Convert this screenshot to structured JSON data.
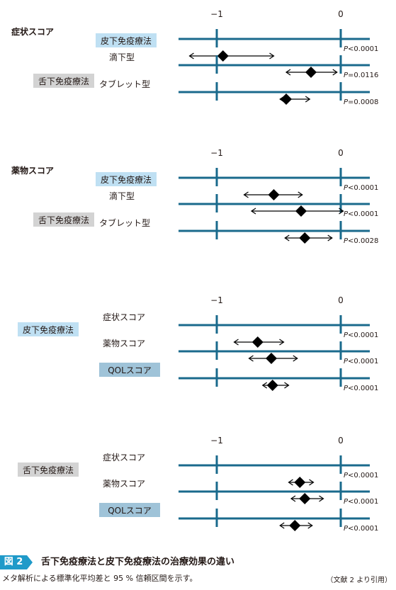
{
  "figure": {
    "badge": "図 2",
    "title": "舌下免疫療法と皮下免疫療法の治療効果の違い",
    "caption": "メタ解析による標準化平均差と 95 % 信頼区間を示す。",
    "source": "（文献 2 より引用）"
  },
  "colors": {
    "axis": "#1a6a8c",
    "subcutaneous_box": "#bfe0f3",
    "sublingual_box": "#d3d3d3",
    "qol_box": "#9fc3d8",
    "marker": "#000000"
  },
  "chart_data": [
    {
      "type": "forest",
      "title": "症状スコア",
      "ticks": [
        "−1",
        "0"
      ],
      "xlim": [
        -1.05,
        0.22
      ],
      "group_labels": [
        {
          "text": "皮下免疫療法",
          "style": "subcutaneous"
        },
        {
          "text": "舌下免疫療法",
          "style": "sublingual"
        }
      ],
      "rows": [
        {
          "label": "",
          "estimate": -0.95,
          "ci": [
            -1.22,
            -0.54
          ],
          "p": "P<0.0001"
        },
        {
          "label": "滴下型",
          "estimate": -0.24,
          "ci": [
            -0.44,
            -0.03
          ],
          "p": "P=0.0116"
        },
        {
          "label": "タブレット型",
          "estimate": -0.44,
          "ci": [
            -0.49,
            -0.25
          ],
          "p": "P=0.0008"
        }
      ]
    },
    {
      "type": "forest",
      "title": "薬物スコア",
      "ticks": [
        "−1",
        "0"
      ],
      "xlim": [
        -1.05,
        0.22
      ],
      "group_labels": [
        {
          "text": "皮下免疫療法",
          "style": "subcutaneous"
        },
        {
          "text": "舌下免疫療法",
          "style": "sublingual"
        }
      ],
      "rows": [
        {
          "label": "",
          "estimate": -0.54,
          "ci": [
            -0.78,
            -0.31
          ],
          "p": "P<0.0001"
        },
        {
          "label": "滴下型",
          "estimate": -0.32,
          "ci": [
            -0.72,
            0.02
          ],
          "p": "P<0.0001"
        },
        {
          "label": "タブレット型",
          "estimate": -0.29,
          "ci": [
            -0.45,
            -0.07
          ],
          "p": "P<0.0028"
        }
      ]
    },
    {
      "type": "forest",
      "title": "",
      "ticks": [
        "−1",
        "0"
      ],
      "xlim": [
        -1.05,
        0.22
      ],
      "group_labels": [
        {
          "text": "皮下免疫療法",
          "style": "subcutaneous"
        }
      ],
      "rows": [
        {
          "label": "症状スコア",
          "label_style": "plain",
          "estimate": -0.67,
          "ci": [
            -0.86,
            -0.46
          ],
          "p": "P<0.0001"
        },
        {
          "label": "薬物スコア",
          "label_style": "plain",
          "estimate": -0.56,
          "ci": [
            -0.74,
            -0.35
          ],
          "p": "P<0.0001"
        },
        {
          "label": "QOLスコア",
          "label_style": "qol",
          "estimate": -0.55,
          "ci": [
            -0.63,
            -0.42
          ],
          "p": "P<0.0001"
        }
      ]
    },
    {
      "type": "forest",
      "title": "",
      "ticks": [
        "−1",
        "0"
      ],
      "xlim": [
        -1.05,
        0.22
      ],
      "group_labels": [
        {
          "text": "舌下免疫療法",
          "style": "sublingual"
        }
      ],
      "rows": [
        {
          "label": "症状スコア",
          "label_style": "plain",
          "estimate": -0.33,
          "ci": [
            -0.42,
            -0.22
          ],
          "p": "P<0.0001"
        },
        {
          "label": "薬物スコア",
          "label_style": "plain",
          "estimate": -0.29,
          "ci": [
            -0.4,
            -0.14
          ],
          "p": "P<0.0001"
        },
        {
          "label": "QOLスコア",
          "label_style": "qol",
          "estimate": -0.37,
          "ci": [
            -0.49,
            -0.23
          ],
          "p": "P<0.0001"
        }
      ]
    }
  ]
}
